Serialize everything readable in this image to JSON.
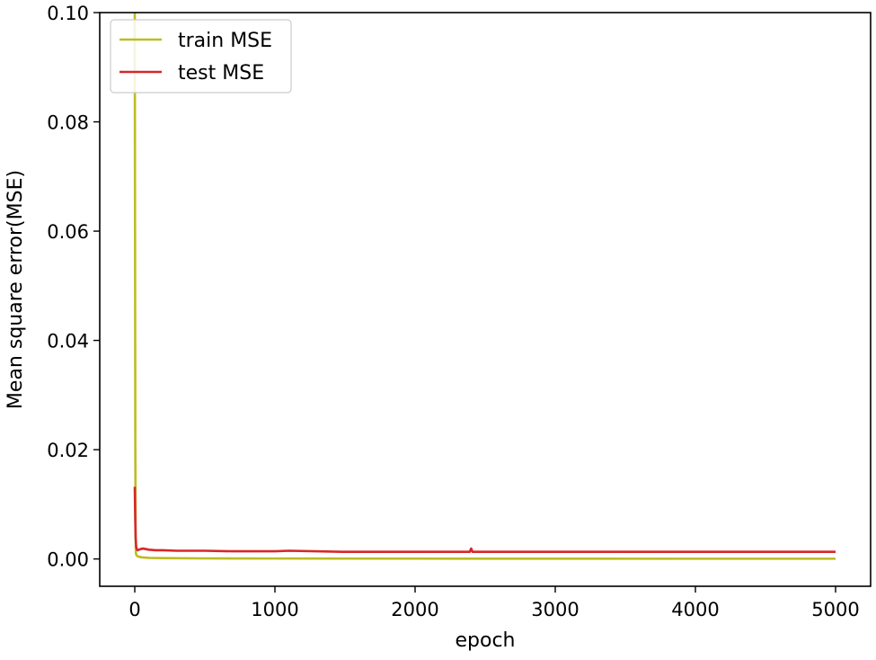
{
  "chart_data": {
    "type": "line",
    "title": "",
    "xlabel": "epoch",
    "ylabel": "Mean square error(MSE)",
    "xlim": [
      -250,
      5250
    ],
    "ylim": [
      -0.005,
      0.1
    ],
    "xticks": [
      0,
      1000,
      2000,
      3000,
      4000,
      5000
    ],
    "xtick_labels": [
      "0",
      "1000",
      "2000",
      "3000",
      "4000",
      "5000"
    ],
    "yticks": [
      0.0,
      0.02,
      0.04,
      0.06,
      0.08,
      0.1
    ],
    "ytick_labels": [
      "0.00",
      "0.02",
      "0.04",
      "0.06",
      "0.08",
      "0.10"
    ],
    "grid": false,
    "legend_position": "top-left",
    "series": [
      {
        "name": "train MSE",
        "color": "#bcbd22",
        "x": [
          0,
          2,
          4,
          6,
          8,
          10,
          15,
          20,
          30,
          50,
          100,
          200,
          500,
          1000,
          2000,
          3000,
          4000,
          5000
        ],
        "y": [
          0.1,
          0.06,
          0.02,
          0.004,
          0.0012,
          0.0008,
          0.0006,
          0.0005,
          0.0004,
          0.0003,
          0.0002,
          0.00015,
          0.0001,
          8e-05,
          6e-05,
          5e-05,
          4e-05,
          4e-05
        ]
      },
      {
        "name": "test MSE",
        "color": "#d62728",
        "x": [
          0,
          3,
          6,
          10,
          15,
          20,
          40,
          60,
          100,
          150,
          200,
          300,
          500,
          700,
          1000,
          1100,
          1500,
          2000,
          2390,
          2400,
          2410,
          3000,
          3500,
          4000,
          4500,
          5000
        ],
        "y": [
          0.0132,
          0.008,
          0.004,
          0.0022,
          0.0018,
          0.0016,
          0.0018,
          0.0019,
          0.0017,
          0.0016,
          0.0016,
          0.0015,
          0.0015,
          0.0014,
          0.0014,
          0.0015,
          0.0013,
          0.0013,
          0.0013,
          0.0019,
          0.0013,
          0.0013,
          0.0013,
          0.0013,
          0.0013,
          0.0013
        ]
      }
    ]
  }
}
